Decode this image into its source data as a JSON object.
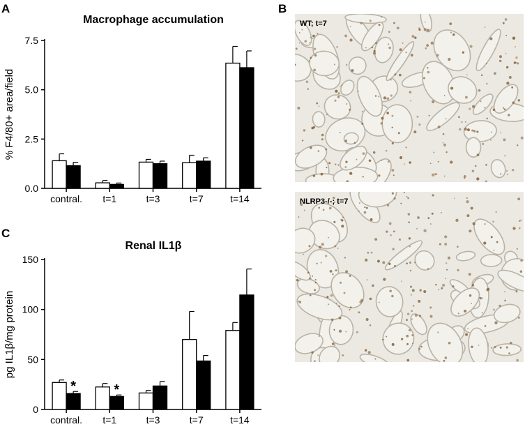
{
  "panels": {
    "a": "A",
    "b": "B",
    "c": "C"
  },
  "micrographs": {
    "top_label": "WT; t=7",
    "bottom_label": "NLRP3-/-; t=7",
    "background": "#ece9e2",
    "stain_color": "#8a6a45"
  },
  "colors": {
    "series_open": "#ffffff",
    "series_filled": "#000000",
    "axis": "#000000"
  },
  "chart_data": [
    {
      "id": "a",
      "type": "bar",
      "title": "Macrophage accumulation",
      "ylabel": "% F4/80+ area/field",
      "xlabel": "",
      "ylim": [
        0,
        7.5
      ],
      "yticks": [
        "0.0",
        "2.5",
        "5.0",
        "7.5"
      ],
      "ytick_values": [
        0,
        2.5,
        5.0,
        7.5
      ],
      "categories": [
        "contral.",
        "t=1",
        "t=3",
        "t=7",
        "t=14"
      ],
      "series": [
        {
          "fill": "open",
          "values": [
            1.4,
            0.28,
            1.33,
            1.3,
            6.35
          ],
          "errors": [
            0.35,
            0.12,
            0.14,
            0.38,
            0.85
          ]
        },
        {
          "fill": "filled",
          "values": [
            1.15,
            0.2,
            1.25,
            1.38,
            6.12
          ],
          "errors": [
            0.17,
            0.07,
            0.13,
            0.17,
            0.85
          ]
        }
      ],
      "annotations": []
    },
    {
      "id": "c",
      "type": "bar",
      "title": "Renal IL1β",
      "ylabel": "pg IL1β/mg protein",
      "xlabel": "",
      "ylim": [
        0,
        150
      ],
      "yticks": [
        "0",
        "50",
        "100",
        "150"
      ],
      "ytick_values": [
        0,
        50,
        100,
        150
      ],
      "categories": [
        "contral.",
        "t=1",
        "t=3",
        "t=7",
        "t=14"
      ],
      "series": [
        {
          "fill": "open",
          "values": [
            27,
            22.5,
            16.5,
            70,
            79
          ],
          "errors": [
            2.5,
            3.5,
            2.5,
            28,
            8
          ]
        },
        {
          "fill": "filled",
          "values": [
            16,
            13,
            23.5,
            48.5,
            114.5
          ],
          "errors": [
            2.0,
            1.5,
            4.5,
            5.5,
            26
          ]
        }
      ],
      "annotations": [
        {
          "text": "*",
          "category": 0,
          "series": 1
        },
        {
          "text": "*",
          "category": 1,
          "series": 1
        }
      ]
    }
  ]
}
